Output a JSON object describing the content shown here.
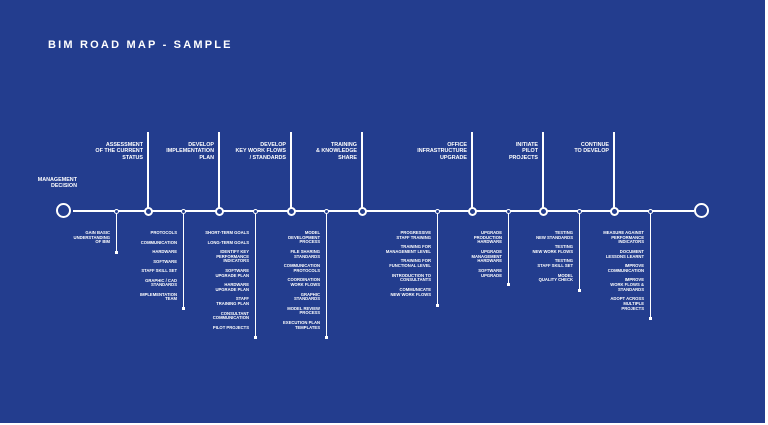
{
  "title": "BIM ROAD MAP - SAMPLE",
  "start_label": "MANAGEMENT\nDECISION",
  "milestones": [
    "ASSESSMENT\nOF THE CURRENT\nSTATUS",
    "DEVELOP\nIMPLEMENTATION\nPLAN",
    "DEVELOP\nKEY WORK FLOWS\n/ STANDARDS",
    "TRAINING\n& KNOWLEDGE\nSHARE",
    "OFFICE\nINFRASTRUCTURE\nUPGRADE",
    "INITIATE\nPILOT\nPROJECTS",
    "CONTINUE\nTO DEVELOP"
  ],
  "tasks": [
    [
      "GAIN BASIC\nUNDERSTANDING\nOF BIM"
    ],
    [
      "PROTOCOLS",
      "COMMUNICATION",
      "HARDWARE",
      "SOFTWARE",
      "STAFF SKILL SET",
      "GRAPHIC / CAD\nSTANDARDS",
      "IMPLEMENTATION\nTEAM"
    ],
    [
      "SHORT-TERM GOALS",
      "LONG-TERM GOALS",
      "IDENTIFY KEY\nPERFORMANCE\nINDICATORS",
      "SOFTWARE\nUPGRADE PLAN",
      "HARDWARE\nUPGRADE PLAN",
      "STAFF\nTRAINING PLAN",
      "CONSULTANT\nCOMMUNICATION",
      "PILOT PROJECTS"
    ],
    [
      "MODEL\nDEVELOPMENT\nPROCESS",
      "FILE SHARING\nSTANDARDS",
      "COMMUNICATION\nPROTOCOLS",
      "COORDINATION\nWORK FLOWS",
      "GRAPHIC\nSTANDARDS",
      "MODEL REVIEW\nPROCESS",
      "EXECUTION PLAN\nTEMPLATES"
    ],
    [
      "PROGRESSIVE\nSTAFF TRAINING",
      "TRAINING FOR\nMANAGEMENT LEVEL",
      "TRAINING FOR\nFUNCTIONAL LEVEL",
      "INTRODUCTION TO\nCONSULTANTS",
      "COMMUNICATE\nNEW WORK FLOWS"
    ],
    [
      "UPGRADE\nPRODUCTION\nHARDWARE",
      "UPGRADE\nMANAGEMENT\nHARDWARE",
      "SOFTWARE\nUPGRADE"
    ],
    [
      "TESTING\nNEW STANDARDS",
      "TESTING\nNEW WORK FLOWS",
      "TESTING\nSTAFF SKILL SET",
      "MODEL\nQUALITY CHECK"
    ],
    [
      "MEASURE AGAINST\nPERFORMANCE\nINDICATORS",
      "DOCUMENT\nLESSONS LEARNT",
      "IMPROVE\nCOMMUNICATION",
      "IMPROVE\nWORK FLOWS &\nSTANDARDS",
      "ADOPT ACROSS\nMULTIPLE\nPROJECTS"
    ]
  ]
}
